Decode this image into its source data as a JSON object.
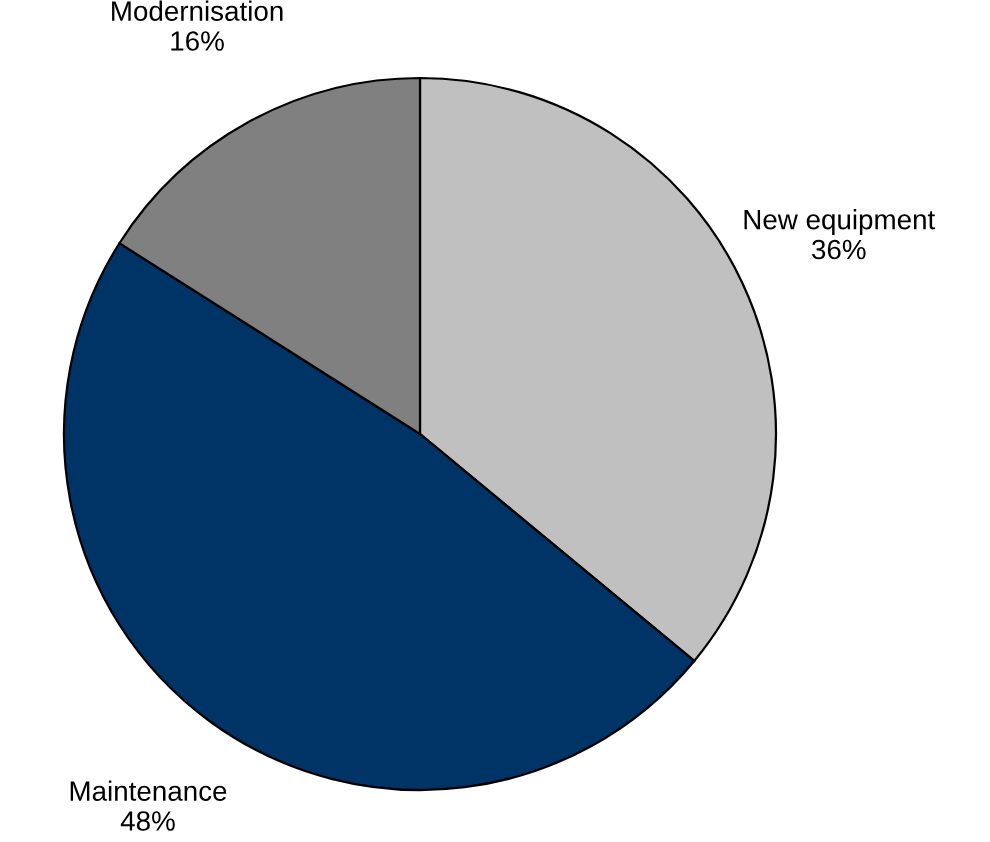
{
  "chart_data": {
    "type": "pie",
    "categories": [
      "New equipment",
      "Maintenance",
      "Modernisation"
    ],
    "values": [
      36,
      48,
      16
    ],
    "colors": [
      "#c0c0c0",
      "#003366",
      "#808080"
    ],
    "value_labels": [
      "36%",
      "48%",
      "16%"
    ]
  }
}
